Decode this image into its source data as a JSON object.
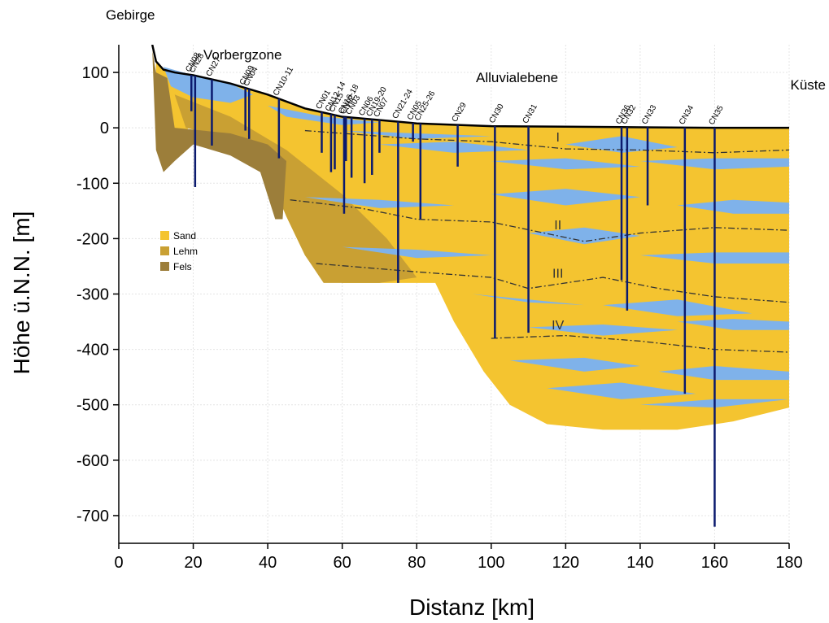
{
  "chart_data": {
    "type": "cross-section",
    "xlabel": "Distanz [km]",
    "ylabel": "Höhe ü.N.N. [m]",
    "xlim": [
      0,
      180
    ],
    "ylim": [
      -750,
      150
    ],
    "xticks": [
      0,
      20,
      40,
      60,
      80,
      100,
      120,
      140,
      160,
      180
    ],
    "yticks": [
      100,
      0,
      -100,
      -200,
      -300,
      -400,
      -500,
      -600,
      -700
    ],
    "grid": true,
    "annotations": [
      "Gebirge",
      "Vorbergzone",
      "Alluvialebene",
      "Küste"
    ],
    "surface": {
      "color": "#000000",
      "x": [
        9,
        10,
        12,
        15,
        20,
        30,
        40,
        50,
        60,
        80,
        100,
        120,
        140,
        160,
        180
      ],
      "y": [
        150,
        120,
        105,
        100,
        95,
        80,
        60,
        35,
        20,
        8,
        3,
        2,
        1,
        0,
        0
      ]
    },
    "layers": [
      {
        "name": "Sand",
        "color": "#f4c430",
        "x": [
          10,
          12,
          15,
          20,
          30,
          40,
          50,
          60,
          80,
          100,
          120,
          140,
          160,
          180,
          180,
          165,
          150,
          130,
          115,
          105,
          98,
          90,
          85,
          60,
          55,
          50,
          45,
          40,
          30,
          20,
          15,
          12,
          10
        ],
        "y": [
          120,
          105,
          100,
          95,
          80,
          60,
          35,
          20,
          8,
          3,
          2,
          1,
          0,
          0,
          -505,
          -530,
          -545,
          -545,
          -535,
          -500,
          -440,
          -350,
          -280,
          -280,
          -270,
          -230,
          -160,
          -80,
          -20,
          10,
          -30,
          -60,
          40
        ]
      },
      {
        "name": "Lehm",
        "color": "#c9a033",
        "x": [
          15,
          30,
          45,
          60,
          72,
          80,
          70,
          55,
          50,
          45,
          40,
          30,
          18
        ],
        "y": [
          60,
          20,
          -40,
          -120,
          -200,
          -270,
          -280,
          -280,
          -230,
          -160,
          -80,
          -20,
          0
        ]
      },
      {
        "name": "Fels",
        "color": "#9c7e3a",
        "x": [
          10,
          13,
          15,
          30,
          40,
          45,
          44,
          42,
          38,
          30,
          20,
          15,
          12,
          10,
          9
        ],
        "y": [
          100,
          90,
          0,
          -10,
          -30,
          -60,
          -165,
          -165,
          -80,
          -50,
          -30,
          -60,
          -80,
          -40,
          140
        ]
      }
    ],
    "lenses": {
      "color": "#7fb2ea",
      "polygons": [
        {
          "x": [
            12,
            20,
            30,
            36,
            30,
            20,
            14
          ],
          "y": [
            110,
            95,
            80,
            60,
            45,
            55,
            75
          ]
        },
        {
          "x": [
            40,
            55,
            70,
            60,
            45
          ],
          "y": [
            40,
            20,
            10,
            5,
            20
          ]
        },
        {
          "x": [
            60,
            80,
            100,
            80
          ],
          "y": [
            -5,
            -10,
            -15,
            -20
          ]
        },
        {
          "x": [
            70,
            90,
            110,
            90
          ],
          "y": [
            -30,
            -25,
            -40,
            -45
          ]
        },
        {
          "x": [
            120,
            135,
            150,
            135
          ],
          "y": [
            -30,
            -15,
            -35,
            -45
          ]
        },
        {
          "x": [
            100,
            120,
            140,
            120
          ],
          "y": [
            -60,
            -55,
            -70,
            -75
          ]
        },
        {
          "x": [
            140,
            160,
            180,
            180,
            160
          ],
          "y": [
            -60,
            -55,
            -55,
            -70,
            -75
          ]
        },
        {
          "x": [
            50,
            70,
            90,
            70
          ],
          "y": [
            -125,
            -130,
            -140,
            -145
          ]
        },
        {
          "x": [
            100,
            120,
            140,
            120
          ],
          "y": [
            -120,
            -110,
            -125,
            -140
          ]
        },
        {
          "x": [
            150,
            165,
            180,
            180,
            165
          ],
          "y": [
            -140,
            -130,
            -135,
            -155,
            -155
          ]
        },
        {
          "x": [
            110,
            125,
            140,
            125
          ],
          "y": [
            -190,
            -180,
            -195,
            -210
          ]
        },
        {
          "x": [
            60,
            80,
            100,
            80
          ],
          "y": [
            -215,
            -220,
            -230,
            -235
          ]
        },
        {
          "x": [
            140,
            160,
            180,
            180,
            160
          ],
          "y": [
            -230,
            -225,
            -225,
            -245,
            -245
          ]
        },
        {
          "x": [
            95,
            110,
            125,
            110
          ],
          "y": [
            -300,
            -310,
            -320,
            -315
          ]
        },
        {
          "x": [
            130,
            150,
            170,
            150
          ],
          "y": [
            -320,
            -310,
            -335,
            -340
          ]
        },
        {
          "x": [
            110,
            130,
            150,
            130
          ],
          "y": [
            -360,
            -355,
            -365,
            -375
          ]
        },
        {
          "x": [
            150,
            165,
            180,
            180,
            165
          ],
          "y": [
            -350,
            -345,
            -350,
            -365,
            -365
          ]
        },
        {
          "x": [
            105,
            125,
            140,
            125
          ],
          "y": [
            -420,
            -415,
            -430,
            -440
          ]
        },
        {
          "x": [
            145,
            160,
            180,
            180,
            160
          ],
          "y": [
            -440,
            -430,
            -440,
            -455,
            -455
          ]
        },
        {
          "x": [
            115,
            135,
            155,
            135
          ],
          "y": [
            -470,
            -460,
            -480,
            -490
          ]
        },
        {
          "x": [
            140,
            160,
            180,
            160
          ],
          "y": [
            -500,
            -490,
            -490,
            -505
          ]
        }
      ]
    },
    "horizons": {
      "color": "#333333",
      "lines": [
        {
          "label": "I",
          "x": [
            50,
            60,
            80,
            100,
            120,
            140,
            160,
            180
          ],
          "y": [
            -5,
            -10,
            -20,
            -25,
            -38,
            -40,
            -45,
            -40
          ]
        },
        {
          "label": "II",
          "x": [
            46,
            65,
            80,
            100,
            125,
            140,
            160,
            180
          ],
          "y": [
            -130,
            -145,
            -165,
            -170,
            -205,
            -190,
            -180,
            -185
          ]
        },
        {
          "label": "III",
          "x": [
            53,
            80,
            100,
            110,
            130,
            145,
            160,
            180
          ],
          "y": [
            -245,
            -260,
            -270,
            -290,
            -270,
            -290,
            -305,
            -315
          ]
        },
        {
          "label": "IV",
          "x": [
            100,
            120,
            140,
            160,
            180
          ],
          "y": [
            -380,
            -375,
            -385,
            -400,
            -405
          ]
        }
      ]
    },
    "boreholes": {
      "color": "#0b1a6e",
      "items": [
        {
          "name": "CN08",
          "x": 19.5,
          "bottom": 30
        },
        {
          "name": "CN28",
          "x": 20.5,
          "bottom": -107
        },
        {
          "name": "CN27",
          "x": 25,
          "bottom": -32
        },
        {
          "name": "CN09",
          "x": 34,
          "bottom": -5
        },
        {
          "name": "CN04",
          "x": 35,
          "bottom": -20
        },
        {
          "name": "CN10-11",
          "x": 43,
          "bottom": -55
        },
        {
          "name": "CN01",
          "x": 54.5,
          "bottom": -45
        },
        {
          "name": "CN12-14",
          "x": 57,
          "bottom": -80
        },
        {
          "name": "CN15",
          "x": 58,
          "bottom": -75
        },
        {
          "name": "CN16-18",
          "x": 60.5,
          "bottom": -155
        },
        {
          "name": "CN02",
          "x": 61,
          "bottom": -60
        },
        {
          "name": "CN03",
          "x": 62.5,
          "bottom": -90
        },
        {
          "name": "CN06",
          "x": 66,
          "bottom": -100
        },
        {
          "name": "CN19-20",
          "x": 68,
          "bottom": -85
        },
        {
          "name": "CN07",
          "x": 70,
          "bottom": -45
        },
        {
          "name": "CN21-24",
          "x": 75,
          "bottom": -280
        },
        {
          "name": "CN05",
          "x": 79,
          "bottom": -25
        },
        {
          "name": "CN25-26",
          "x": 81,
          "bottom": -165
        },
        {
          "name": "CN29",
          "x": 91,
          "bottom": -70
        },
        {
          "name": "CN30",
          "x": 101,
          "bottom": -380
        },
        {
          "name": "CN31",
          "x": 110,
          "bottom": -370
        },
        {
          "name": "CN36",
          "x": 135,
          "bottom": -275
        },
        {
          "name": "CN32",
          "x": 136.5,
          "bottom": -330
        },
        {
          "name": "CN33",
          "x": 142,
          "bottom": -140
        },
        {
          "name": "CN34",
          "x": 152,
          "bottom": -480
        },
        {
          "name": "CN35",
          "x": 160,
          "bottom": -720
        }
      ]
    }
  }
}
